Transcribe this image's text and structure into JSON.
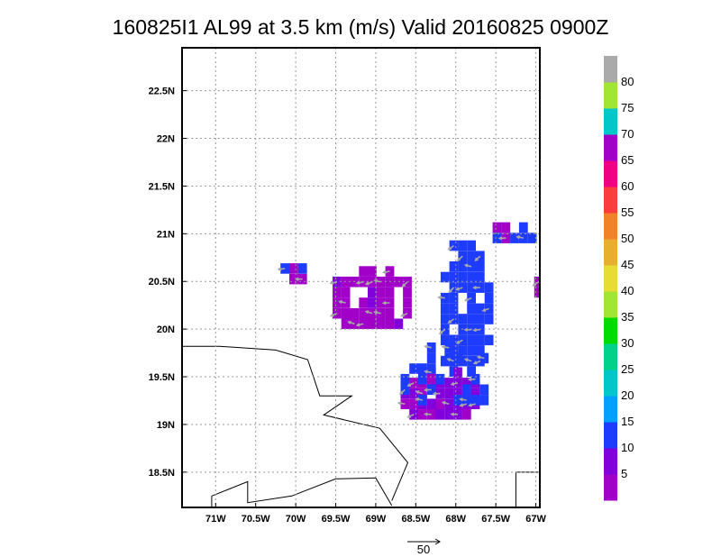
{
  "chart_data": {
    "type": "heatmap",
    "title": "160825I1  AL99  at  3.5  km  (m/s)  Valid  20160825  0900Z",
    "x_ticks": [
      {
        "v": -71.0,
        "label": "71W"
      },
      {
        "v": -70.5,
        "label": "70.5W"
      },
      {
        "v": -70.0,
        "label": "70W"
      },
      {
        "v": -69.5,
        "label": "69.5W"
      },
      {
        "v": -69.0,
        "label": "69W"
      },
      {
        "v": -68.5,
        "label": "68.5W"
      },
      {
        "v": -68.0,
        "label": "68W"
      },
      {
        "v": -67.5,
        "label": "67.5W"
      },
      {
        "v": -67.0,
        "label": "67W"
      }
    ],
    "y_ticks": [
      {
        "v": 18.5,
        "label": "18.5N"
      },
      {
        "v": 19.0,
        "label": "19N"
      },
      {
        "v": 19.5,
        "label": "19.5N"
      },
      {
        "v": 20.0,
        "label": "20N"
      },
      {
        "v": 20.5,
        "label": "20.5N"
      },
      {
        "v": 21.0,
        "label": "21N"
      },
      {
        "v": 21.5,
        "label": "21.5N"
      },
      {
        "v": 22.0,
        "label": "22N"
      },
      {
        "v": 22.5,
        "label": "22.5N"
      }
    ],
    "xlim": [
      -71.42,
      -66.95
    ],
    "ylim": [
      18.13,
      22.95
    ],
    "grid": true,
    "colorbar": {
      "levels": [
        "5",
        "10",
        "15",
        "20",
        "25",
        "30",
        "35",
        "40",
        "45",
        "50",
        "55",
        "60",
        "65",
        "70",
        "75",
        "80"
      ],
      "colors": [
        "#a000c8",
        "#8200dc",
        "#1e3cff",
        "#00a0ff",
        "#00c8c8",
        "#00d28c",
        "#00dc00",
        "#a0e632",
        "#e6dc32",
        "#e6af2d",
        "#f08228",
        "#fa3c3c",
        "#f00082",
        "#a000c8",
        "#00c8c8",
        "#a0e632",
        "#aaaaaa"
      ]
    },
    "wind_regions": [
      {
        "name": "north-cluster-purple",
        "lon": [
          -69.65,
          -68.55
        ],
        "lat": [
          19.95,
          20.7
        ],
        "class": "5-10"
      },
      {
        "name": "east-cluster-blue",
        "lon": [
          -68.3,
          -67.55
        ],
        "lat": [
          19.45,
          21.0
        ],
        "class": "10-15"
      },
      {
        "name": "southeast-core-purple",
        "lon": [
          -68.75,
          -67.65
        ],
        "lat": [
          19.05,
          19.75
        ],
        "class": "5-10"
      },
      {
        "name": "northeast-patch",
        "lon": [
          -67.65,
          -67.0
        ],
        "lat": [
          20.9,
          21.25
        ],
        "class": "10-15"
      },
      {
        "name": "northwest-patch",
        "lon": [
          -70.35,
          -69.9
        ],
        "lat": [
          20.5,
          20.8
        ],
        "class": "5-10"
      }
    ],
    "reference_vector": {
      "label": "50"
    }
  }
}
